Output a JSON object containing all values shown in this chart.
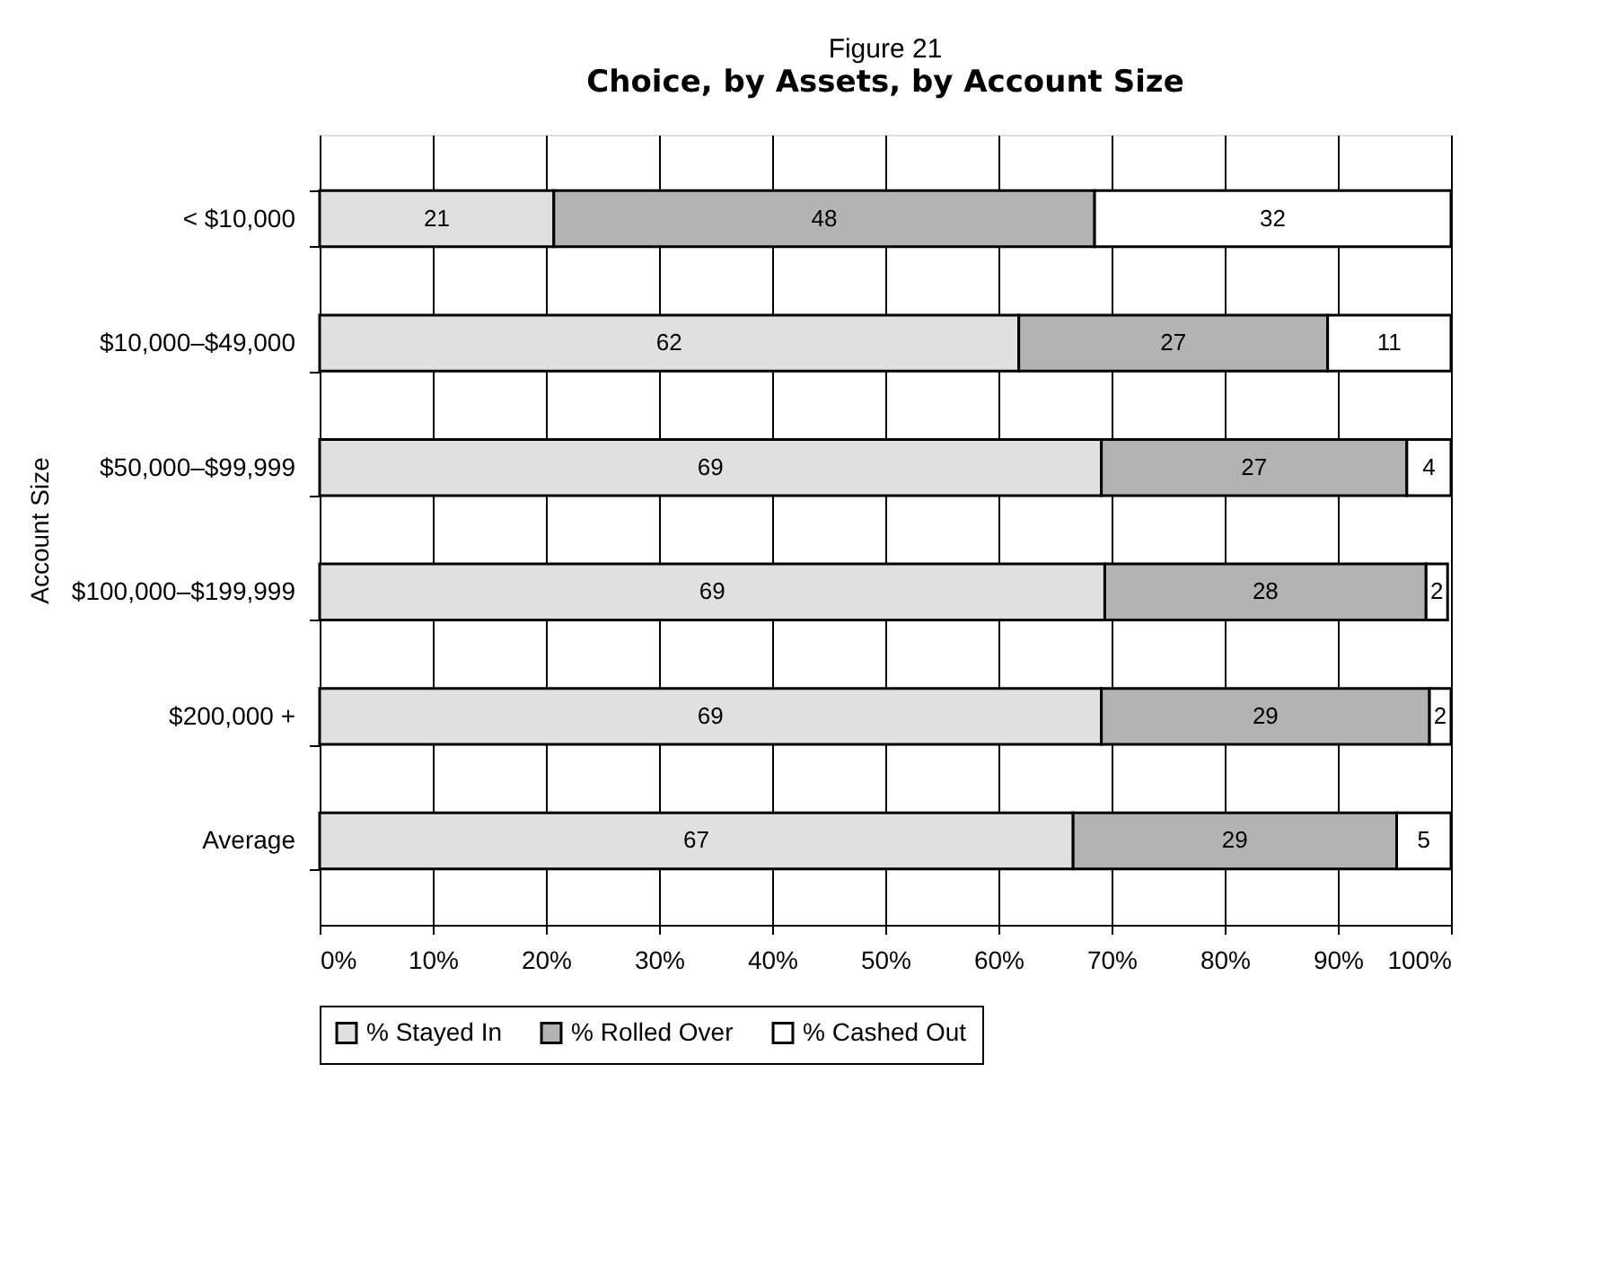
{
  "chart_data": {
    "type": "bar",
    "orientation": "horizontal",
    "stacked": true,
    "title": "Figure 21",
    "subtitle": "Choice, by Assets, by Account Size",
    "ylabel": "Account Size",
    "categories": [
      "< $10,000",
      "$10,000–$49,000",
      "$50,000–$99,999",
      "$100,000–$199,999",
      "$200,000 +",
      "Average"
    ],
    "series": [
      {
        "name": "% Stayed In",
        "color": "#e0e0e0",
        "values": [
          20.7,
          61.8,
          69.1,
          69.4,
          69.1,
          66.6
        ],
        "value_labels": [
          "21",
          "62",
          "69",
          "69",
          "69",
          "67"
        ]
      },
      {
        "name": "% Rolled Over",
        "color": "#b3b3b3",
        "values": [
          47.8,
          27.3,
          27.0,
          28.4,
          29.0,
          28.6
        ],
        "value_labels": [
          "48",
          "27",
          "27",
          "28",
          "29",
          "29"
        ]
      },
      {
        "name": "% Cashed Out",
        "color": "#ffffff",
        "values": [
          31.5,
          10.9,
          3.9,
          1.9,
          1.9,
          4.8
        ],
        "value_labels": [
          "32",
          "11",
          "4",
          "2",
          "2",
          "5"
        ]
      }
    ],
    "xlim": [
      0,
      100
    ],
    "xticks": [
      {
        "value": 0,
        "label": "0%"
      },
      {
        "value": 10,
        "label": "10%"
      },
      {
        "value": 20,
        "label": "20%"
      },
      {
        "value": 30,
        "label": "30%"
      },
      {
        "value": 40,
        "label": "40%"
      },
      {
        "value": 50,
        "label": "50%"
      },
      {
        "value": 60,
        "label": "60%"
      },
      {
        "value": 70,
        "label": "70%"
      },
      {
        "value": 80,
        "label": "80%"
      },
      {
        "value": 90,
        "label": "90%"
      },
      {
        "value": 100,
        "label": "100%"
      }
    ],
    "grid": "x",
    "legend": "bottom"
  }
}
